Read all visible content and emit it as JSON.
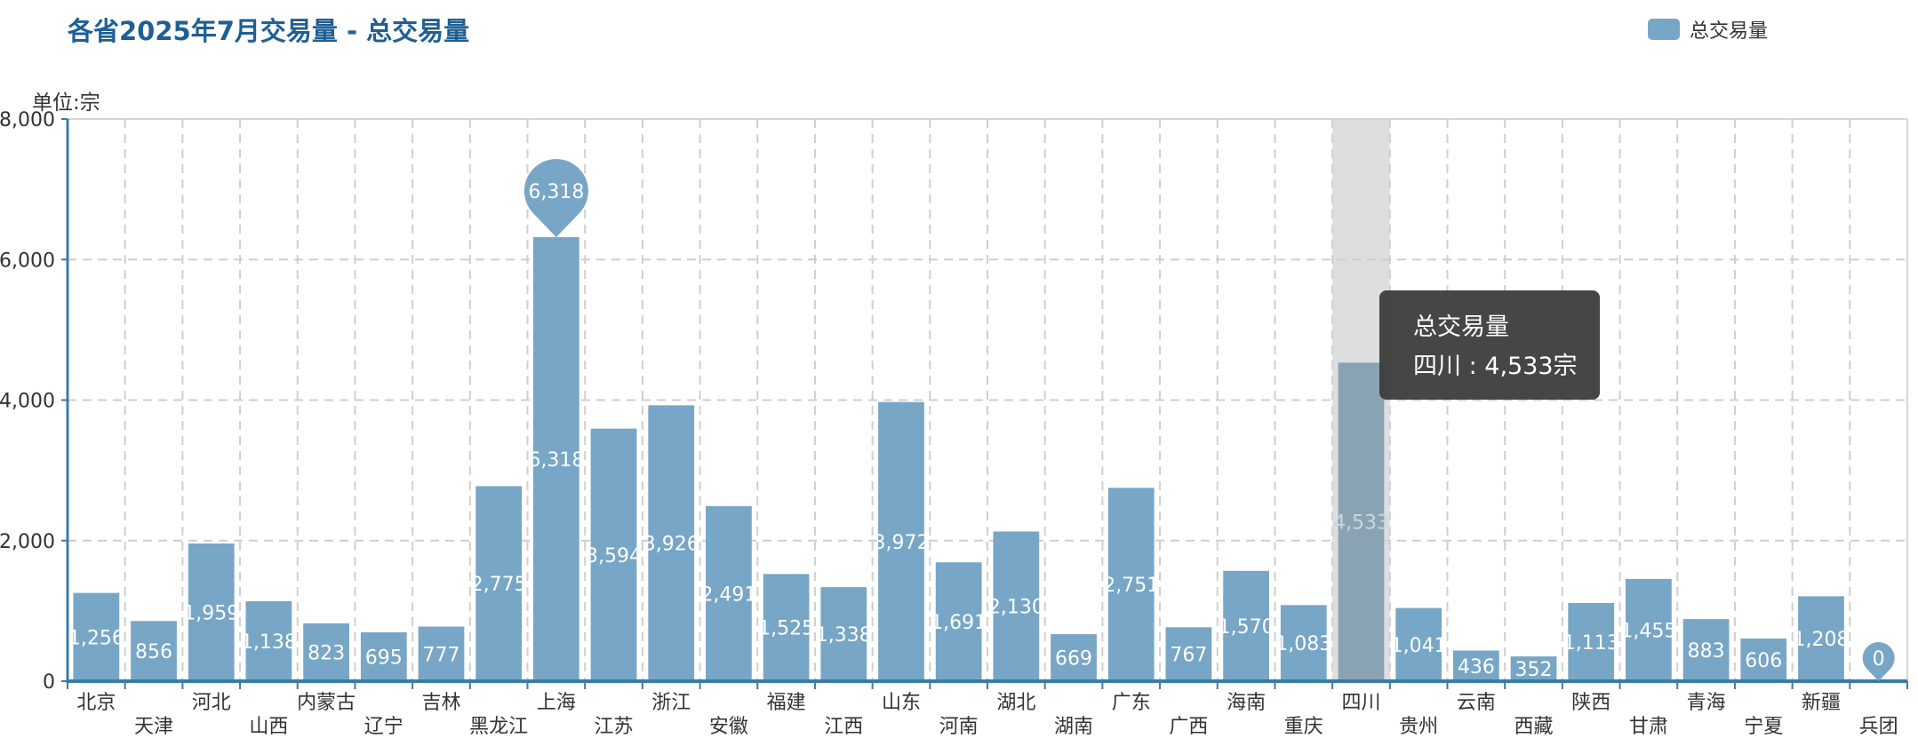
{
  "header": {
    "title": "各省2025年7月交易量 - 总交易量"
  },
  "legend": {
    "label": "总交易量"
  },
  "yaxis": {
    "unit": "单位:宗"
  },
  "tooltip": {
    "title": "总交易量",
    "category": "四川",
    "separator": " : ",
    "value": "4,533宗"
  },
  "colors": {
    "bar": "#77a6c6",
    "highlight_bar": "#8aa3b2",
    "axis": "#3a7ca8",
    "title": "#1f5f94",
    "tooltip_bg": "#3c3c3c"
  },
  "chart_data": {
    "type": "bar",
    "title": "各省2025年7月交易量 - 总交易量",
    "xlabel": "",
    "ylabel": "单位:宗",
    "ylim": [
      0,
      8000
    ],
    "yticks": [
      0,
      2000,
      4000,
      6000,
      8000
    ],
    "ytick_labels": [
      "0",
      "2,000",
      "4,000",
      "6,000",
      "8,000"
    ],
    "grid": true,
    "legend_position": "top-right",
    "categories": [
      "北京",
      "天津",
      "河北",
      "山西",
      "内蒙古",
      "辽宁",
      "吉林",
      "黑龙江",
      "上海",
      "江苏",
      "浙江",
      "安徽",
      "福建",
      "江西",
      "山东",
      "河南",
      "湖北",
      "湖南",
      "广东",
      "广西",
      "海南",
      "重庆",
      "四川",
      "贵州",
      "云南",
      "西藏",
      "陕西",
      "甘肃",
      "青海",
      "宁夏",
      "新疆",
      "兵团"
    ],
    "series": [
      {
        "name": "总交易量",
        "values": [
          1256,
          856,
          1959,
          1138,
          823,
          695,
          777,
          2775,
          6318,
          3594,
          3926,
          2491,
          1525,
          1338,
          3972,
          1691,
          2130,
          669,
          2751,
          767,
          1570,
          1083,
          4533,
          1041,
          436,
          352,
          1113,
          1455,
          883,
          606,
          1208,
          0
        ],
        "labels": [
          "1,256",
          "856",
          "1,959",
          "1,138",
          "823",
          "695",
          "777",
          "2,775",
          "6,318",
          "3,594",
          "3,926",
          "2,491",
          "1,525",
          "1,338",
          "3,972",
          "1,691",
          "2,130",
          "669",
          "2,751",
          "767",
          "1,570",
          "1,083",
          "4,533",
          "1,041",
          "436",
          "352",
          "1,113",
          "1,455",
          "883",
          "606",
          "1,208",
          "0"
        ]
      }
    ],
    "max_marker": {
      "category": "上海",
      "label": "6,318"
    },
    "min_marker": {
      "category": "兵团",
      "label": "0"
    },
    "highlight_category": "四川"
  }
}
